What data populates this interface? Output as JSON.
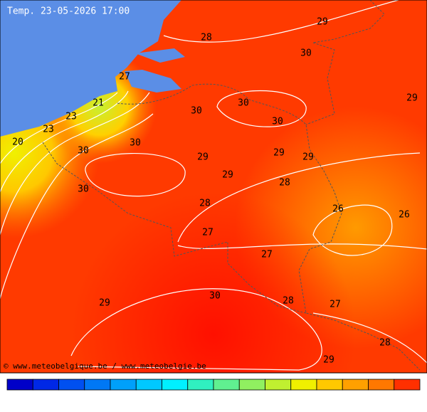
{
  "title": "Temp. 23-05-2026 17:00",
  "credit": "© www.meteobelgique.be / www.meteobelgie.be",
  "contour_labels": [
    "29",
    "28",
    "30",
    "27",
    "21",
    "30",
    "29",
    "23",
    "30",
    "30",
    "23",
    "20",
    "30",
    "30",
    "29",
    "29",
    "29",
    "29",
    "28",
    "30",
    "28",
    "26",
    "26",
    "27",
    "27",
    "30",
    "29",
    "28",
    "27",
    "28",
    "29"
  ],
  "colorbar": [
    "#0000c8",
    "#0028e6",
    "#0050f0",
    "#0078f5",
    "#00a0fa",
    "#00c8ff",
    "#00f0ff",
    "#30f0c0",
    "#60f090",
    "#90f060",
    "#c0f030",
    "#f0f000",
    "#ffc800",
    "#ffa000",
    "#ff7800",
    "#ff3000"
  ]
}
